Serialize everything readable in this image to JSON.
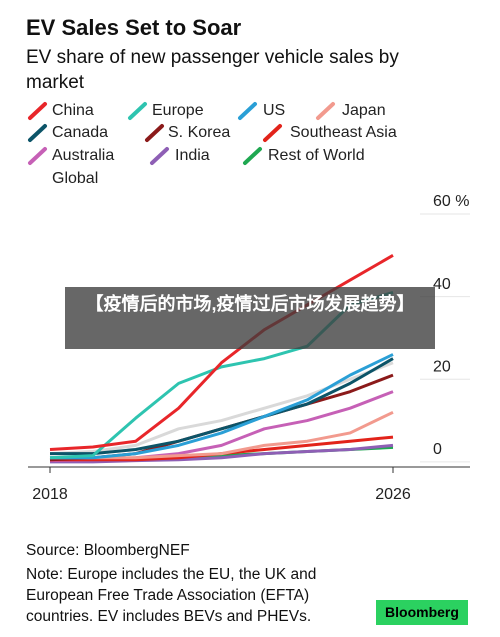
{
  "chart_data": {
    "type": "line",
    "title": "EV Sales Set to Soar",
    "subtitle": "EV share of new passenger vehicle sales by market",
    "x": [
      2018,
      2019,
      2020,
      2021,
      2022,
      2023,
      2024,
      2025,
      2026
    ],
    "xlim": [
      2018,
      2026
    ],
    "xticks": [
      2018,
      2026
    ],
    "ylim": [
      -1,
      60
    ],
    "yticks": [
      0,
      20,
      40,
      {
        "value": 60,
        "label": "60 %"
      }
    ],
    "grid": false,
    "series": [
      {
        "name": "China",
        "color": "#e8262a",
        "values": [
          3,
          3.6,
          5,
          13,
          24,
          32,
          38,
          44,
          50
        ]
      },
      {
        "name": "Europe",
        "color": "#2ec4b0",
        "values": [
          1,
          1.5,
          10.6,
          19,
          23,
          25,
          28,
          38,
          41
        ]
      },
      {
        "name": "US",
        "color": "#2a9fd6",
        "values": [
          1,
          1,
          2,
          4,
          7,
          11,
          15,
          21,
          26
        ]
      },
      {
        "name": "Japan",
        "color": "#f29a8e",
        "values": [
          1,
          1,
          1,
          1.5,
          2,
          4,
          5,
          7,
          12
        ]
      },
      {
        "name": "Canada",
        "color": "#0c5468",
        "values": [
          2,
          2,
          3,
          5,
          8,
          11,
          14,
          19,
          25
        ]
      },
      {
        "name": "S. Korea",
        "color": "#8b1a1a",
        "values": [
          0.5,
          1,
          2,
          5,
          8,
          11,
          14,
          17,
          21
        ]
      },
      {
        "name": "Southeast Asia",
        "color": "#e2231a",
        "values": [
          0.5,
          0.5,
          0.5,
          1,
          2,
          3,
          4,
          5,
          6
        ]
      },
      {
        "name": "Australia",
        "color": "#c660b6",
        "values": [
          0.3,
          0.5,
          1,
          2,
          4,
          8,
          10,
          13,
          17
        ]
      },
      {
        "name": "India",
        "color": "#8e5fb5",
        "values": [
          0,
          0,
          0.3,
          0.5,
          1,
          2,
          2.5,
          3,
          4
        ]
      },
      {
        "name": "Rest of World",
        "color": "#1fa851",
        "values": [
          0.3,
          0.5,
          0.8,
          1,
          1.5,
          2,
          2.5,
          3,
          3.5
        ]
      },
      {
        "name": "Global",
        "color": "#d9d9d9",
        "values": [
          2,
          2.5,
          4,
          8,
          10,
          13,
          16,
          20,
          24
        ]
      }
    ],
    "legend": "top-left",
    "overlay_text": "【疫情后的市场,疫情过后市场发展趋势】",
    "source": "Source: BloombergNEF",
    "note": "Note: Europe includes the EU, the UK and European Free Trade Association (EFTA) countries. EV includes BEVs and PHEVs.",
    "logo": "Bloomberg"
  }
}
